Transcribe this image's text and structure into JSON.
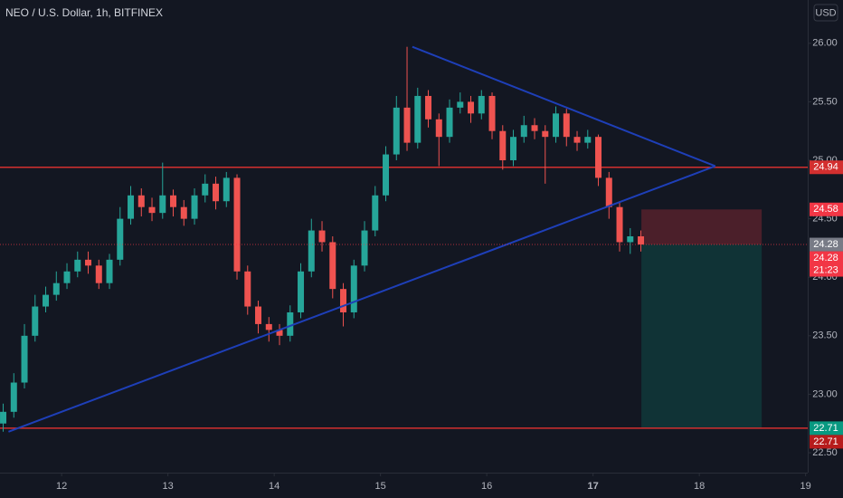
{
  "chart_data": {
    "type": "candlestick",
    "title": "NEO / U.S. Dollar, 1h, BITFINEX",
    "currency": "USD",
    "up_color": "#26a69a",
    "down_color": "#ef5350",
    "x": [
      11.45,
      11.55,
      11.65,
      11.75,
      11.85,
      11.95,
      12.05,
      12.15,
      12.25,
      12.35,
      12.45,
      12.55,
      12.65,
      12.75,
      12.85,
      12.95,
      13.05,
      13.15,
      13.25,
      13.35,
      13.45,
      13.55,
      13.65,
      13.75,
      13.85,
      13.95,
      14.05,
      14.15,
      14.25,
      14.35,
      14.45,
      14.55,
      14.65,
      14.75,
      14.85,
      14.95,
      15.05,
      15.15,
      15.25,
      15.35,
      15.45,
      15.55,
      15.65,
      15.75,
      15.85,
      15.95,
      16.05,
      16.15,
      16.25,
      16.35,
      16.45,
      16.55,
      16.65,
      16.75,
      16.85,
      16.95,
      17.05,
      17.15,
      17.25,
      17.35,
      17.45
    ],
    "open": [
      22.75,
      22.85,
      23.1,
      23.5,
      23.75,
      23.85,
      23.95,
      24.05,
      24.15,
      24.1,
      23.95,
      24.15,
      24.5,
      24.7,
      24.6,
      24.55,
      24.7,
      24.6,
      24.5,
      24.7,
      24.8,
      24.65,
      24.85,
      24.05,
      23.75,
      23.6,
      23.55,
      23.5,
      23.7,
      24.05,
      24.4,
      24.3,
      23.9,
      23.7,
      24.1,
      24.4,
      24.7,
      25.05,
      25.45,
      25.15,
      25.55,
      25.35,
      25.2,
      25.45,
      25.5,
      25.4,
      25.55,
      25.25,
      25.0,
      25.2,
      25.3,
      25.25,
      25.2,
      25.4,
      25.2,
      25.15,
      25.2,
      24.85,
      24.6,
      24.3,
      24.35
    ],
    "high": [
      22.92,
      23.18,
      23.6,
      23.85,
      23.92,
      24.05,
      24.12,
      24.22,
      24.22,
      24.15,
      24.2,
      24.6,
      24.78,
      24.76,
      24.68,
      24.98,
      24.75,
      24.66,
      24.76,
      24.88,
      24.86,
      24.9,
      24.88,
      24.1,
      23.8,
      23.66,
      23.6,
      23.76,
      24.12,
      24.5,
      24.48,
      24.35,
      23.95,
      24.15,
      24.48,
      24.78,
      25.12,
      25.55,
      25.97,
      25.62,
      25.6,
      25.4,
      25.52,
      25.58,
      25.55,
      25.6,
      25.58,
      25.3,
      25.26,
      25.38,
      25.36,
      25.3,
      25.46,
      25.44,
      25.25,
      25.26,
      25.22,
      24.9,
      24.65,
      24.42,
      24.4
    ],
    "low": [
      22.68,
      22.8,
      23.05,
      23.45,
      23.7,
      23.8,
      23.9,
      24.0,
      24.03,
      23.9,
      23.9,
      24.1,
      24.45,
      24.52,
      24.48,
      24.5,
      24.52,
      24.44,
      24.45,
      24.64,
      24.58,
      24.6,
      23.98,
      23.68,
      23.52,
      23.45,
      23.42,
      23.45,
      23.65,
      24.0,
      24.22,
      23.82,
      23.58,
      23.65,
      24.05,
      24.35,
      24.65,
      25.0,
      25.08,
      25.1,
      25.28,
      24.95,
      25.15,
      25.4,
      25.32,
      25.35,
      25.18,
      24.92,
      24.95,
      25.15,
      25.18,
      24.8,
      25.15,
      25.12,
      25.08,
      25.1,
      24.78,
      24.5,
      24.22,
      24.2,
      24.22
    ],
    "close": [
      22.85,
      23.1,
      23.5,
      23.75,
      23.85,
      23.95,
      24.05,
      24.15,
      24.1,
      23.95,
      24.15,
      24.5,
      24.7,
      24.6,
      24.55,
      24.7,
      24.6,
      24.5,
      24.7,
      24.8,
      24.65,
      24.85,
      24.05,
      23.75,
      23.6,
      23.55,
      23.5,
      23.7,
      24.05,
      24.4,
      24.3,
      23.9,
      23.7,
      24.1,
      24.4,
      24.7,
      25.05,
      25.45,
      25.15,
      25.55,
      25.35,
      25.2,
      25.45,
      25.5,
      25.4,
      25.55,
      25.25,
      25.0,
      25.2,
      25.3,
      25.25,
      25.2,
      25.4,
      25.2,
      25.15,
      25.2,
      24.85,
      24.6,
      24.3,
      24.35,
      24.28
    ],
    "xlim": [
      11.42,
      19.02
    ],
    "ylim": [
      22.33,
      26.37
    ],
    "xticks": [
      12,
      13,
      14,
      15,
      16,
      17,
      18,
      19
    ],
    "yticks": [
      {
        "value": 26,
        "label": "26.00"
      },
      {
        "value": 25.5,
        "label": "25.50"
      },
      {
        "value": 25,
        "label": "25.00"
      },
      {
        "value": 24.5,
        "label": "24.50"
      },
      {
        "value": 24,
        "label": "24.00"
      },
      {
        "value": 23.5,
        "label": "23.50"
      },
      {
        "value": 23,
        "label": "23.00"
      },
      {
        "value": 22.5,
        "label": "22.50"
      }
    ],
    "horizontal_lines": [
      {
        "value": 24.94,
        "color": "#d32f2f"
      },
      {
        "value": 22.71,
        "color": "#d32f2f"
      }
    ],
    "trend_lines": [
      {
        "x": [
          15.3,
          18.15
        ],
        "y": [
          25.97,
          24.95
        ],
        "color": "#1e3fb8"
      },
      {
        "x": [
          11.5,
          18.15
        ],
        "y": [
          22.68,
          24.95
        ],
        "color": "#1e3fb8"
      }
    ],
    "position": {
      "x": [
        17.455,
        18.587
      ],
      "entry": 24.28,
      "stop": 24.58,
      "target": 22.71
    },
    "price_tags": [
      {
        "value": 24.94,
        "color": "#d32f2f"
      },
      {
        "value": 24.58,
        "color": "#f23645"
      },
      {
        "value": 24.28,
        "color": "#787b86"
      },
      {
        "value": 24.28,
        "color": "#f23645",
        "countdown": "21:23"
      },
      {
        "value": 22.71,
        "color": "#089981"
      },
      {
        "value": 22.71,
        "color": "#b71c1c"
      }
    ]
  }
}
